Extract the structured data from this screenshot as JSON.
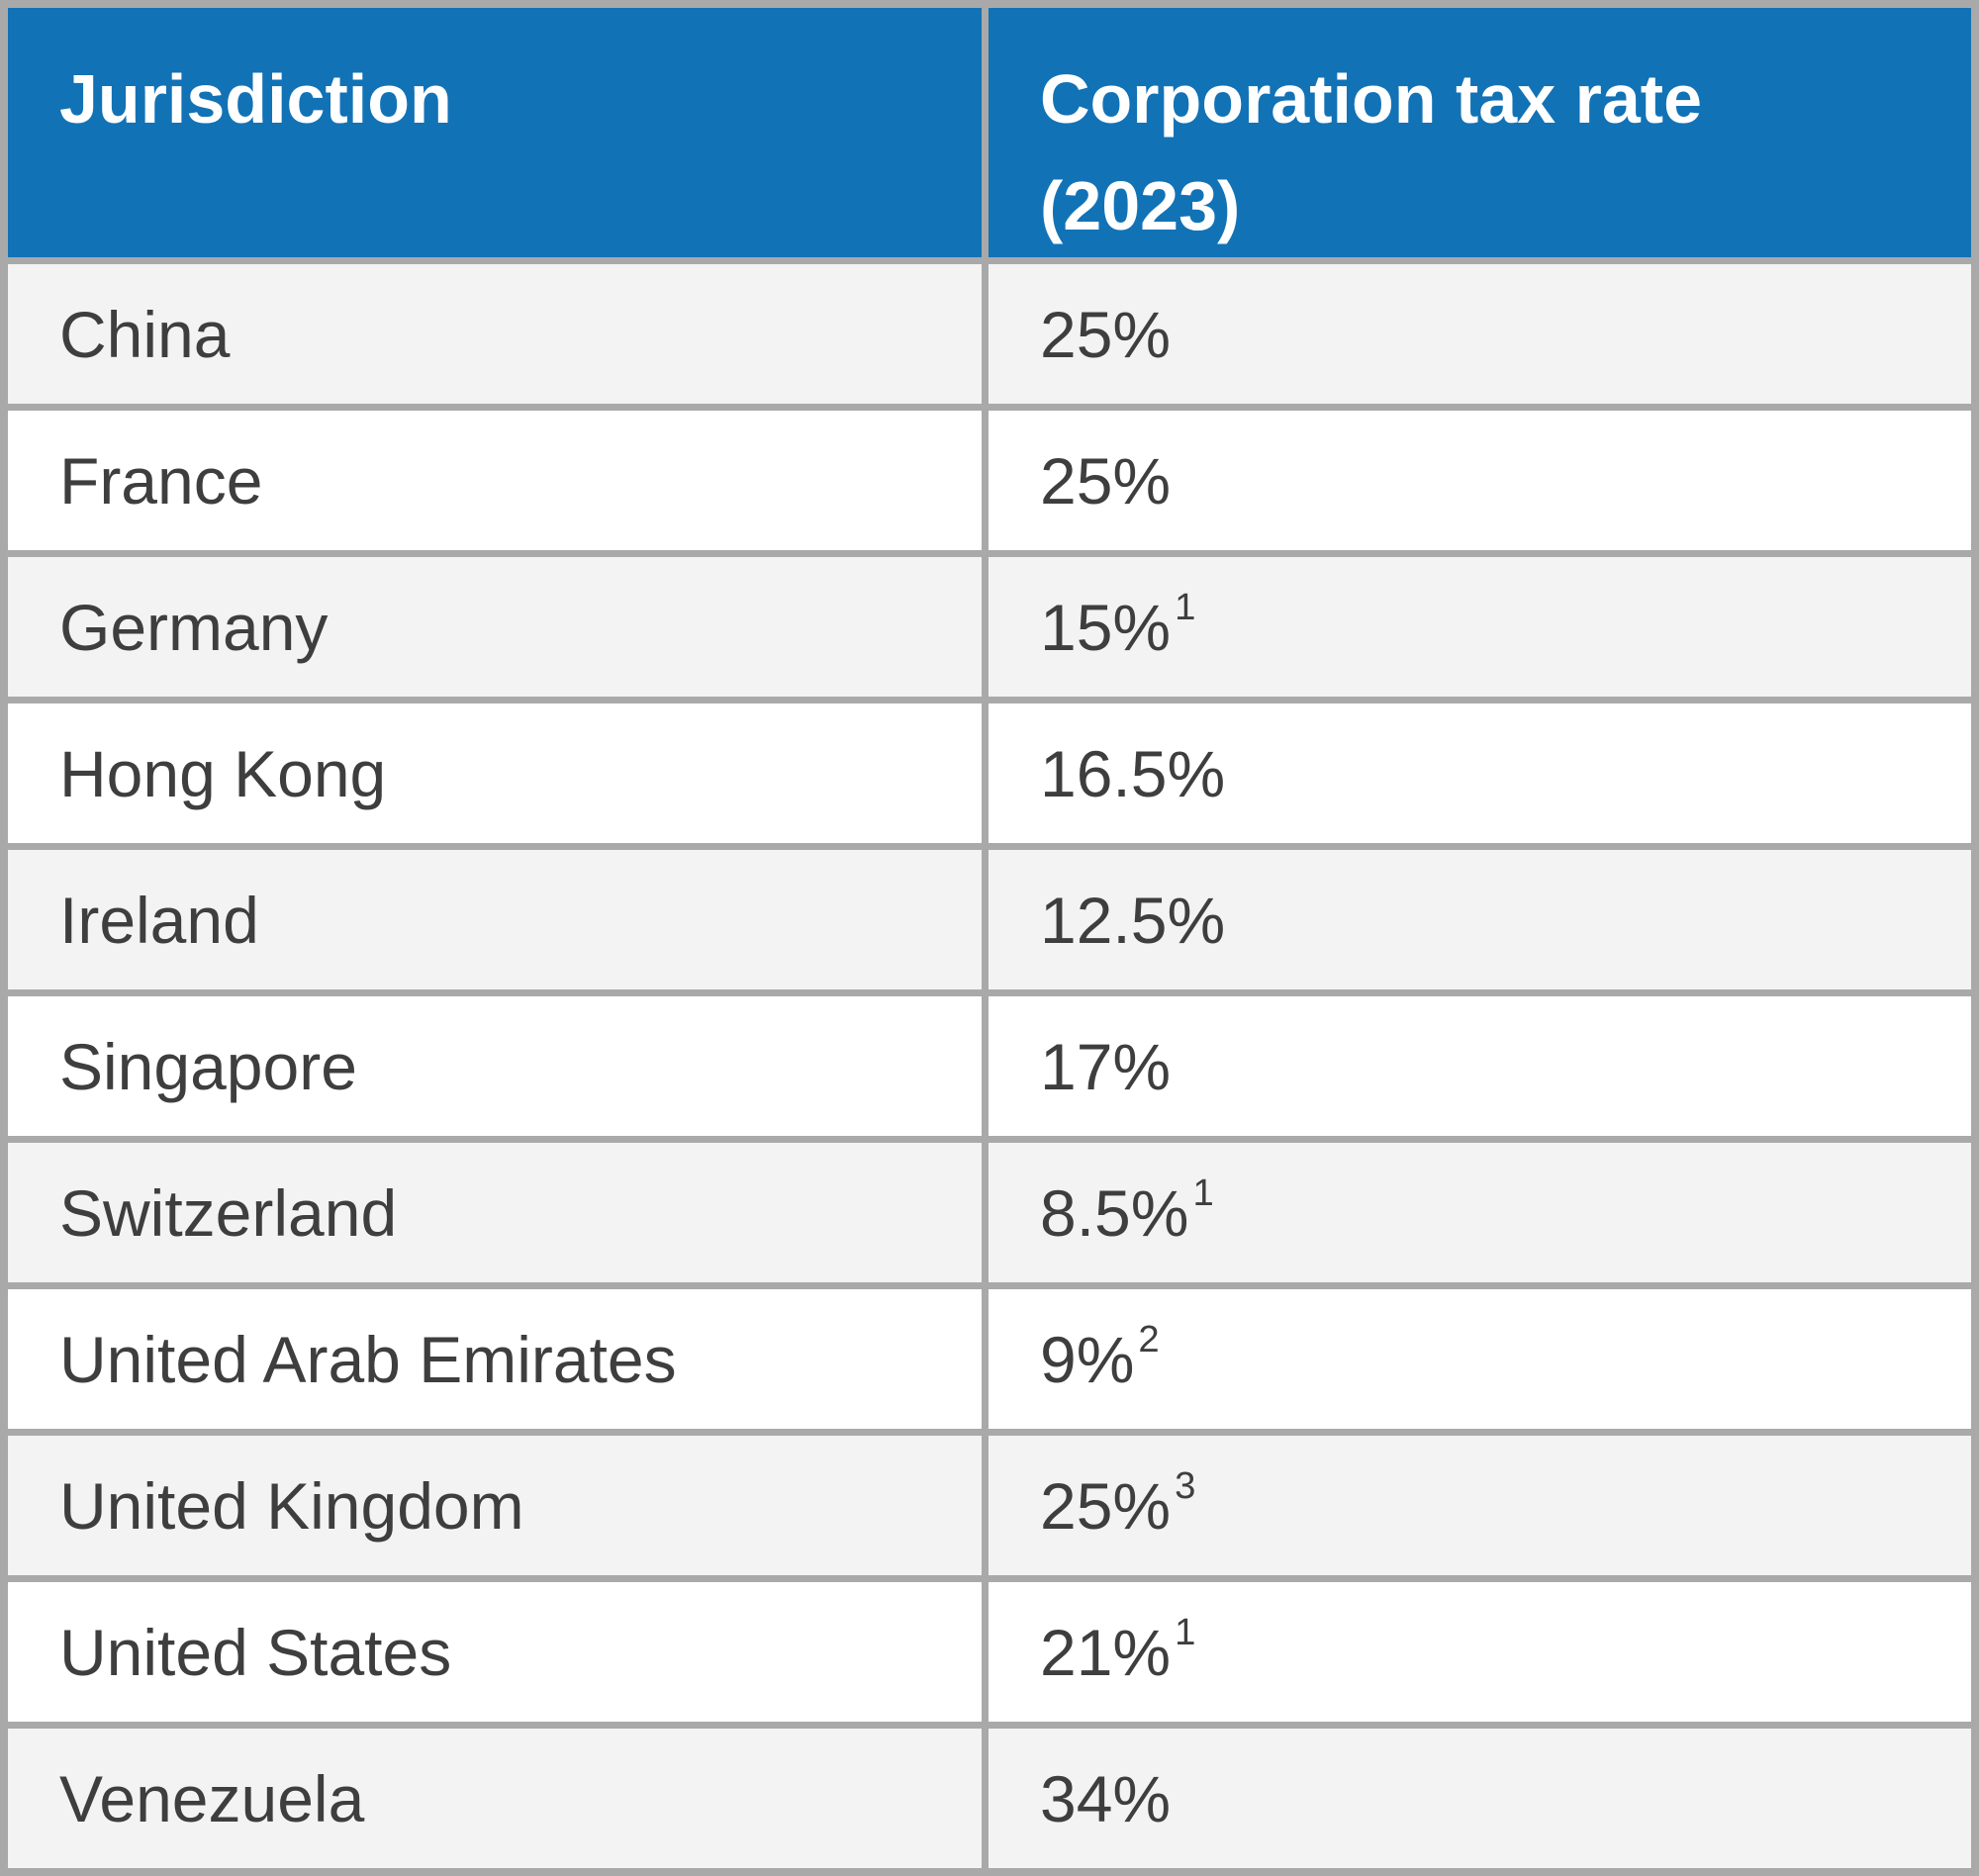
{
  "table": {
    "header": {
      "jurisdiction": "Jurisdiction",
      "rate": "Corporation tax rate (2023)"
    },
    "rows": [
      {
        "jurisdiction": "China",
        "rate": "25%",
        "footnote": ""
      },
      {
        "jurisdiction": "France",
        "rate": "25%",
        "footnote": ""
      },
      {
        "jurisdiction": "Germany",
        "rate": "15%",
        "footnote": "1"
      },
      {
        "jurisdiction": "Hong Kong",
        "rate": "16.5%",
        "footnote": ""
      },
      {
        "jurisdiction": "Ireland",
        "rate": "12.5%",
        "footnote": ""
      },
      {
        "jurisdiction": "Singapore",
        "rate": "17%",
        "footnote": ""
      },
      {
        "jurisdiction": "Switzerland",
        "rate": "8.5%",
        "footnote": "1"
      },
      {
        "jurisdiction": "United Arab Emirates",
        "rate": "9%",
        "footnote": "2"
      },
      {
        "jurisdiction": "United Kingdom",
        "rate": "25%",
        "footnote": "3"
      },
      {
        "jurisdiction": "United States",
        "rate": "21%",
        "footnote": "1"
      },
      {
        "jurisdiction": "Venezuela",
        "rate": "34%",
        "footnote": ""
      }
    ],
    "colors": {
      "header_background": "#1272b6",
      "header_text": "#ffffff",
      "row_alt_background": "#f3f3f3",
      "row_background": "#ffffff",
      "grid_border": "#a9a9a9",
      "body_text": "#3e3e3e"
    }
  },
  "chart_data": {
    "type": "table",
    "title": "",
    "columns": [
      "Jurisdiction",
      "Corporation tax rate (2023)"
    ],
    "rows": [
      [
        "China",
        "25%"
      ],
      [
        "France",
        "25%"
      ],
      [
        "Germany",
        "15%¹"
      ],
      [
        "Hong Kong",
        "16.5%"
      ],
      [
        "Ireland",
        "12.5%"
      ],
      [
        "Singapore",
        "17%"
      ],
      [
        "Switzerland",
        "8.5%¹"
      ],
      [
        "United Arab Emirates",
        "9%²"
      ],
      [
        "United Kingdom",
        "25%³"
      ],
      [
        "United States",
        "21%¹"
      ],
      [
        "Venezuela",
        "34%"
      ]
    ],
    "values_numeric_percent": [
      25,
      25,
      15,
      16.5,
      12.5,
      17,
      8.5,
      9,
      25,
      21,
      34
    ],
    "footnote_markers": [
      "",
      "",
      "1",
      "",
      "",
      "",
      "1",
      "2",
      "3",
      "1",
      ""
    ]
  }
}
